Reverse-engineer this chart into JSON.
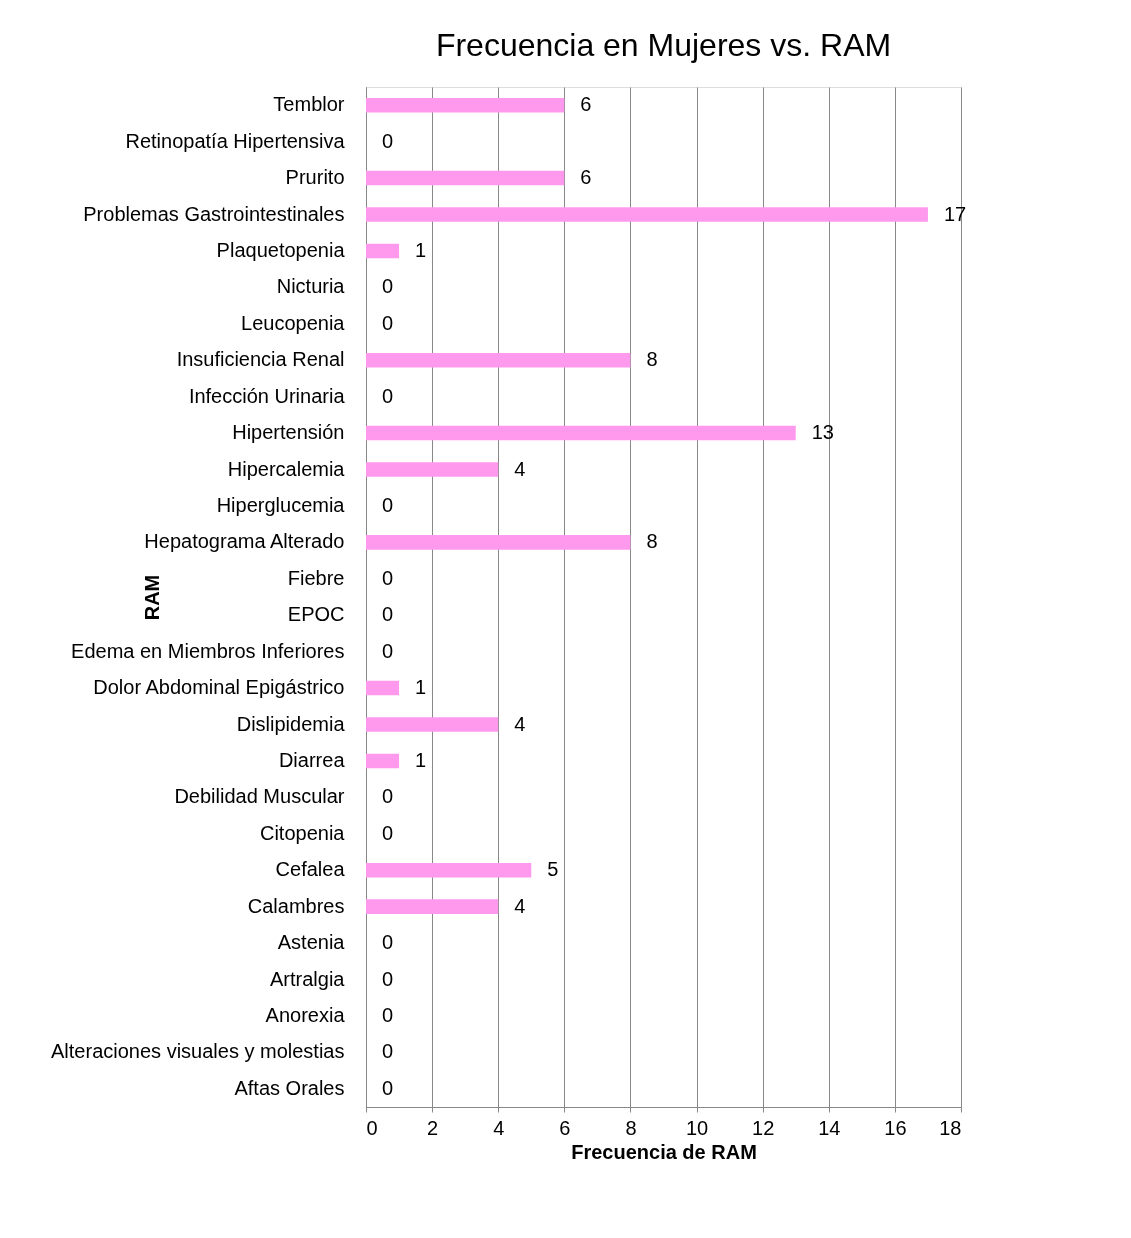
{
  "chart_data": {
    "type": "bar",
    "orientation": "horizontal",
    "title": "Frecuencia en Mujeres vs. RAM",
    "xlabel": "Frecuencia de RAM",
    "ylabel": "RAM",
    "categories": [
      "Temblor",
      "Retinopatía Hipertensiva",
      "Prurito",
      "Problemas Gastrointestinales",
      "Plaquetopenia",
      "Nicturia",
      "Leucopenia",
      "Insuficiencia Renal",
      "Infección Urinaria",
      "Hipertensión",
      "Hipercalemia",
      "Hiperglucemia",
      "Hepatograma Alterado",
      "Fiebre",
      "EPOC",
      "Edema en Miembros Inferiores",
      "Dolor Abdominal Epigástrico",
      "Dislipidemia",
      "Diarrea",
      "Debilidad Muscular",
      "Citopenia",
      "Cefalea",
      "Calambres",
      "Astenia",
      "Artralgia",
      "Anorexia",
      "Alteraciones visuales y molestias",
      "Aftas Orales"
    ],
    "values": [
      6,
      0,
      6,
      17,
      1,
      0,
      0,
      8,
      0,
      13,
      4,
      0,
      8,
      0,
      0,
      0,
      1,
      4,
      1,
      0,
      0,
      5,
      4,
      0,
      0,
      0,
      0,
      0
    ],
    "color": "#ff99ee",
    "xlim": [
      0,
      18
    ],
    "xticks": [
      0,
      2,
      4,
      6,
      8,
      10,
      12,
      14,
      16,
      18
    ],
    "grid": "x",
    "data_labels": true
  }
}
